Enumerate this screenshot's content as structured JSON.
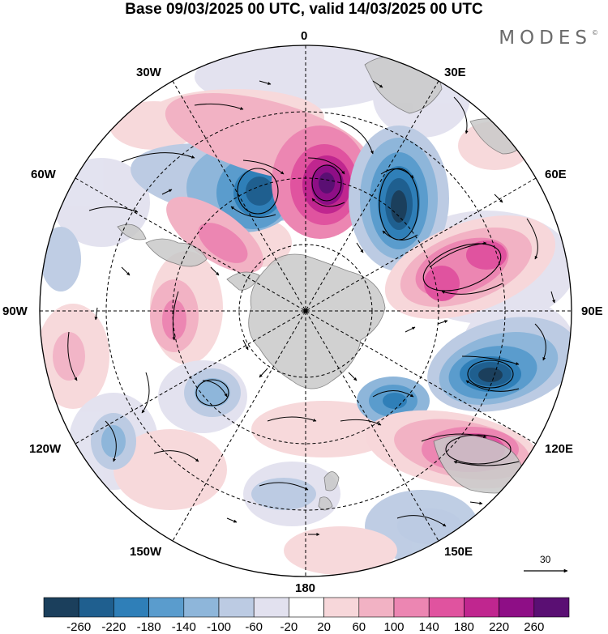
{
  "title": "Base 09/03/2025 00 UTC, valid 14/03/2025 00 UTC",
  "logo": {
    "text": "MODES",
    "mark": "©"
  },
  "longitude_labels": {
    "lon_0": "0",
    "lon_30e": "30E",
    "lon_60e": "60E",
    "lon_90e": "90E",
    "lon_120e": "120E",
    "lon_150e": "150E",
    "lon_180": "180",
    "lon_150w": "150W",
    "lon_120w": "120W",
    "lon_90w": "90W",
    "lon_60w": "60W",
    "lon_30w": "30W"
  },
  "vector_reference": {
    "value": "30"
  },
  "colorbar": {
    "labels": [
      "-260",
      "-220",
      "-180",
      "-140",
      "-100",
      "-60",
      "-20",
      "20",
      "60",
      "100",
      "140",
      "180",
      "220",
      "260"
    ],
    "colors": [
      "#1b3f5c",
      "#1f5f8f",
      "#2f7fb8",
      "#5a9ccd",
      "#8eb6da",
      "#bccbe3",
      "#e2e1ef",
      "#ffffff",
      "#f7d7da",
      "#f2b2c4",
      "#ec86b2",
      "#e0539f",
      "#c0268f",
      "#8e0e86",
      "#5a0f73"
    ]
  },
  "projection": "south-polar-stereographic",
  "anomaly_centers": [
    {
      "sign": "negative",
      "strength": -240,
      "color": "#1f4f74"
    },
    {
      "sign": "negative",
      "strength": -260,
      "color": "#1b3f5c"
    },
    {
      "sign": "positive",
      "strength": 260,
      "color": "#5a0f73"
    },
    {
      "sign": "negative",
      "strength": -220,
      "color": "#1b3f5c"
    },
    {
      "sign": "positive",
      "strength": 180,
      "color": "#e0539f"
    },
    {
      "sign": "positive",
      "strength": 200,
      "color": "#d23b96"
    }
  ]
}
